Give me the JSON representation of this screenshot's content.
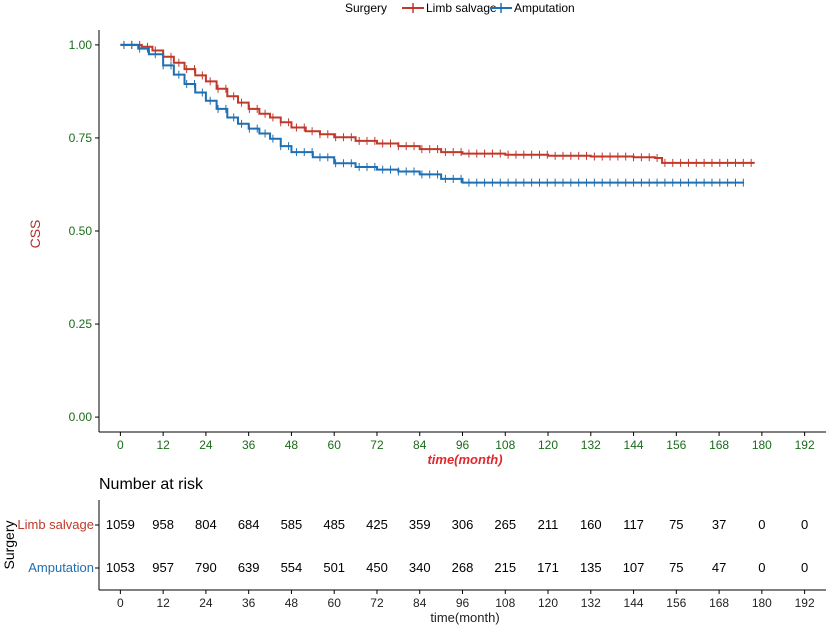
{
  "colors": {
    "limb_salvage": "#c0392b",
    "amputation": "#1f6fb2",
    "tick_green": "#1a6b1a",
    "ylabel": "#b03030",
    "xlabel_main": "#e0282e"
  },
  "legend": {
    "title": "Surgery",
    "items": [
      "Limb salvage",
      "Amputation"
    ]
  },
  "chart_data": [
    {
      "type": "line",
      "title": "",
      "xlabel": "time(month)",
      "ylabel": "CSS",
      "xlim": [
        -6,
        198
      ],
      "ylim": [
        -0.04,
        1.04
      ],
      "x_ticks": [
        0,
        12,
        24,
        36,
        48,
        60,
        72,
        84,
        96,
        108,
        120,
        132,
        144,
        156,
        168,
        180,
        192
      ],
      "x_tick_labels": [
        "0",
        "12",
        "24",
        "36",
        "48",
        "60",
        "72",
        "84",
        "96",
        "108",
        "120",
        "132",
        "144",
        "156",
        "168",
        "180",
        "192"
      ],
      "y_ticks": [
        0,
        0.25,
        0.5,
        0.75,
        1.0
      ],
      "y_tick_labels": [
        "0.00",
        "0.25",
        "0.50",
        "0.75",
        "1.00"
      ],
      "legend_position": "top",
      "series": [
        {
          "name": "Limb salvage",
          "x": [
            0,
            6,
            9,
            12,
            15,
            18,
            21,
            24,
            27,
            30,
            33,
            36,
            39,
            42,
            45,
            48,
            52,
            56,
            60,
            66,
            72,
            78,
            84,
            90,
            96,
            108,
            120,
            132,
            144,
            150,
            152,
            178
          ],
          "y": [
            1.0,
            0.995,
            0.985,
            0.968,
            0.952,
            0.935,
            0.918,
            0.902,
            0.882,
            0.862,
            0.845,
            0.828,
            0.815,
            0.805,
            0.792,
            0.778,
            0.768,
            0.76,
            0.752,
            0.742,
            0.735,
            0.728,
            0.72,
            0.712,
            0.708,
            0.705,
            0.702,
            0.7,
            0.698,
            0.696,
            0.683,
            0.683
          ]
        },
        {
          "name": "Amputation",
          "x": [
            0,
            5,
            8,
            12,
            15,
            18,
            21,
            24,
            27,
            30,
            33,
            36,
            39,
            42,
            45,
            48,
            54,
            60,
            66,
            72,
            78,
            84,
            90,
            96,
            108,
            120,
            132,
            144,
            156,
            168,
            175
          ],
          "y": [
            1.0,
            0.99,
            0.975,
            0.945,
            0.92,
            0.895,
            0.872,
            0.85,
            0.828,
            0.805,
            0.788,
            0.775,
            0.762,
            0.748,
            0.728,
            0.712,
            0.698,
            0.682,
            0.672,
            0.665,
            0.66,
            0.652,
            0.64,
            0.63,
            0.63,
            0.63,
            0.63,
            0.63,
            0.63,
            0.63,
            0.63
          ]
        }
      ]
    },
    {
      "type": "table",
      "title": "Number at risk",
      "ylabel": "Surgery",
      "xlabel": "time(month)",
      "x_ticks": [
        0,
        12,
        24,
        36,
        48,
        60,
        72,
        84,
        96,
        108,
        120,
        132,
        144,
        156,
        168,
        180,
        192
      ],
      "x_tick_labels": [
        "0",
        "12",
        "24",
        "36",
        "48",
        "60",
        "72",
        "84",
        "96",
        "108",
        "120",
        "132",
        "144",
        "156",
        "168",
        "180",
        "192"
      ],
      "rows": [
        {
          "name": "Limb salvage",
          "values": [
            "1059",
            "958",
            "804",
            "684",
            "585",
            "485",
            "425",
            "359",
            "306",
            "265",
            "211",
            "160",
            "117",
            "75",
            "37",
            "0",
            "0"
          ]
        },
        {
          "name": "Amputation",
          "values": [
            "1053",
            "957",
            "790",
            "639",
            "554",
            "501",
            "450",
            "340",
            "268",
            "215",
            "171",
            "135",
            "107",
            "75",
            "47",
            "0",
            "0"
          ]
        }
      ]
    }
  ]
}
